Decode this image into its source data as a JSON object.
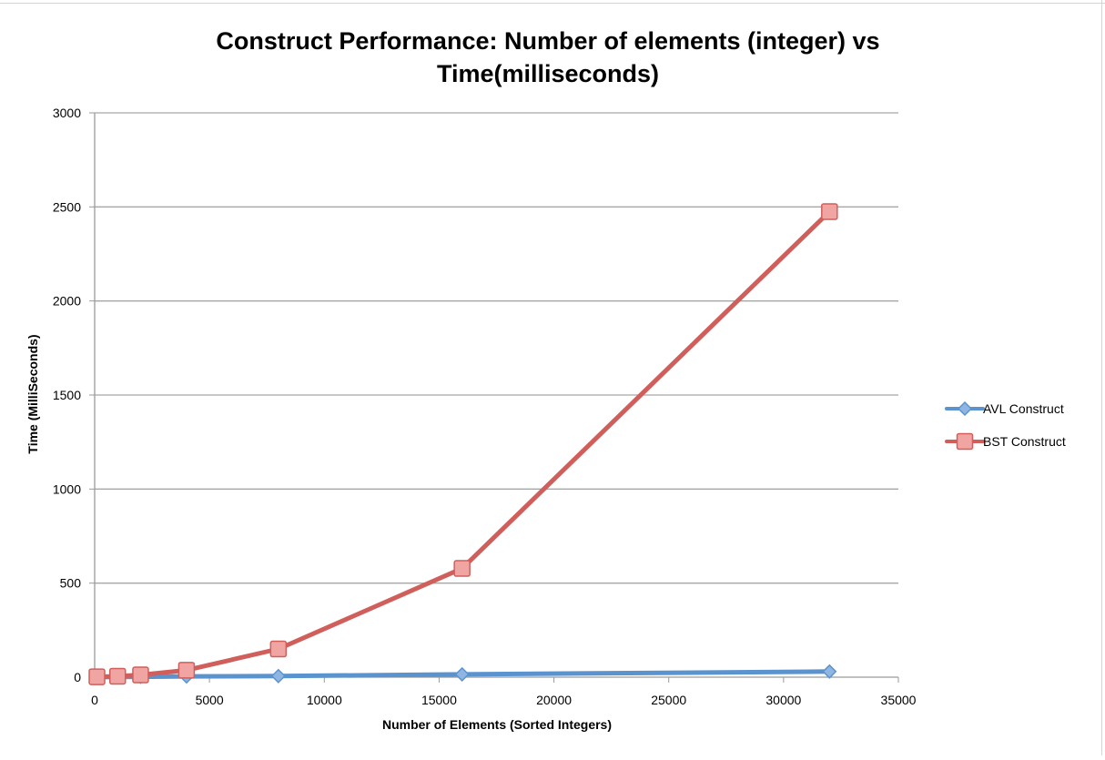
{
  "chart_data": {
    "type": "line",
    "title": [
      "Construct Performance: Number of elements (integer) vs",
      "Time(milliseconds)"
    ],
    "xlabel": "Number of Elements (Sorted Integers)",
    "ylabel": "Time (MilliSeconds)",
    "xlim": [
      0,
      35000
    ],
    "ylim": [
      0,
      3000
    ],
    "xticks": [
      0,
      5000,
      10000,
      15000,
      20000,
      25000,
      30000,
      35000
    ],
    "yticks": [
      0,
      500,
      1000,
      1500,
      2000,
      2500,
      3000
    ],
    "grid": "horizontal",
    "legend_position": "right",
    "series": [
      {
        "name": "AVL Construct",
        "color": "#5b93cf",
        "marker": "diamond",
        "x": [
          100,
          1000,
          2000,
          4000,
          8000,
          16000,
          32000
        ],
        "y": [
          0,
          1,
          2,
          4,
          6,
          15,
          30
        ]
      },
      {
        "name": "BST Construct",
        "color": "#d05f5c",
        "marker": "square",
        "x": [
          100,
          1000,
          2000,
          4000,
          8000,
          16000,
          32000
        ],
        "y": [
          2,
          5,
          12,
          37,
          150,
          578,
          2475
        ]
      }
    ]
  }
}
